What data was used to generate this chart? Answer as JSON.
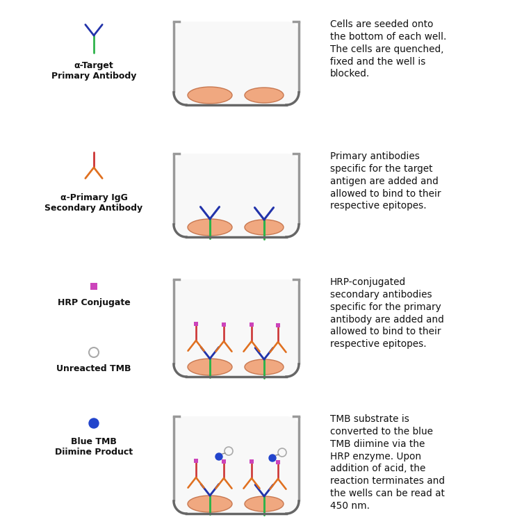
{
  "background_color": "#ffffff",
  "rows": [
    {
      "legend_items": [
        {
          "label": "α-Target\nPrimary Antibody",
          "type": "primary_ab"
        }
      ],
      "well_content": "cells_only",
      "description": "Cells are seeded onto\nthe bottom of each well.\nThe cells are quenched,\nfixed and the well is\nblocked."
    },
    {
      "legend_items": [
        {
          "label": "α-Primary IgG\nSecondary Antibody",
          "type": "secondary_ab"
        }
      ],
      "well_content": "primary_bound",
      "description": "Primary antibodies\nspecific for the target\nantigen are added and\nallowed to bind to their\nrespective epitopes."
    },
    {
      "legend_items": [
        {
          "label": "HRP Conjugate",
          "type": "hrp"
        },
        {
          "label": "Unreacted TMB",
          "type": "tmb_unreacted"
        }
      ],
      "well_content": "secondary_bound",
      "description": "HRP-conjugated\nsecondary antibodies\nspecific for the primary\nantibody are added and\nallowed to bind to their\nrespective epitopes."
    },
    {
      "legend_items": [
        {
          "label": "Blue TMB\nDiimine Product",
          "type": "tmb_reacted"
        }
      ],
      "well_content": "tmb_reacted",
      "description": "TMB substrate is\nconverted to the blue\nTMB diimine via the\nHRP enzyme. Upon\naddition of acid, the\nreaction terminates and\nthe wells can be read at\n450 nm."
    }
  ],
  "colors": {
    "primary_stem": "#2db34a",
    "primary_arms": "#2233aa",
    "secondary_stem": "#cc3333",
    "secondary_arms": "#e07020",
    "hrp_marker": "#cc44bb",
    "tmb_unreacted": "#aaaaaa",
    "tmb_reacted": "#2244cc",
    "cell_fill": "#f0a880",
    "cell_edge": "#c87850",
    "well_fill": "#f5f5f5",
    "well_edge": "#999999",
    "well_bottom": "#666666"
  }
}
